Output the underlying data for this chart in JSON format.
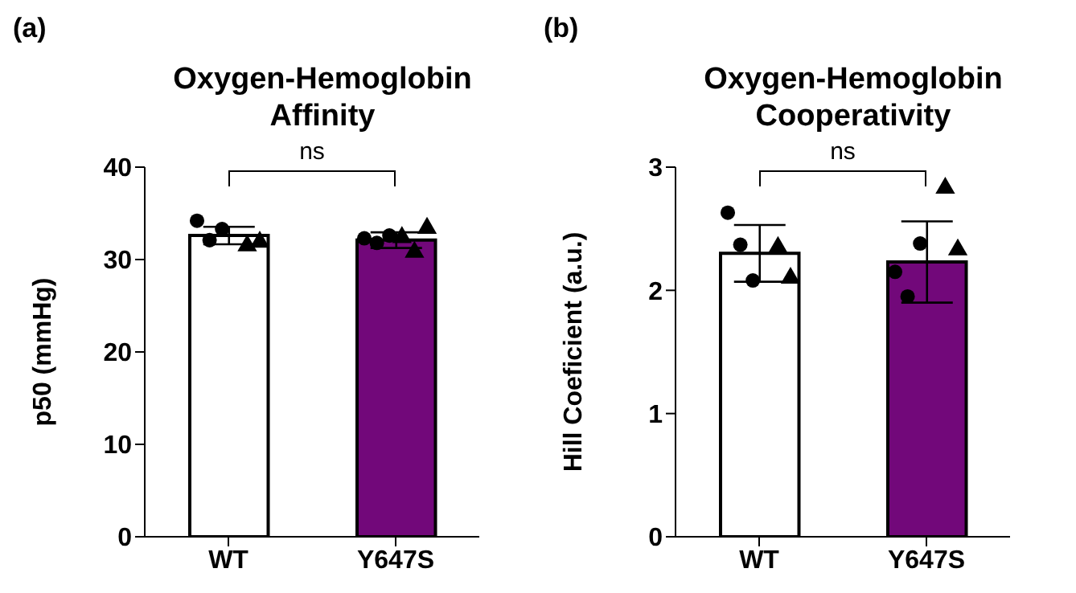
{
  "chart_data": [
    {
      "type": "bar",
      "title": "Oxygen-Hemoglobin Affinity",
      "ylabel": "p50 (mmHg)",
      "annotations": [
        "(a)",
        "ns"
      ],
      "categories": [
        "WT",
        "Y647S"
      ],
      "grid": false,
      "ylim": [
        0,
        40
      ],
      "yticks": [
        0,
        10,
        20,
        30,
        40
      ],
      "series": [
        {
          "values": [
            32.6,
            32.1
          ],
          "colors": [
            "#ffffff",
            "#72087a"
          ],
          "errors": [
            0.95,
            0.85
          ]
        },
        {
          "type": "scatter",
          "marker": "circle",
          "color": "#000000",
          "x": [
            "WT",
            "WT",
            "WT",
            "Y647S",
            "Y647S",
            "Y647S"
          ],
          "values": [
            34.2,
            32.1,
            33.3,
            32.3,
            31.8,
            32.6
          ]
        },
        {
          "type": "scatter",
          "marker": "triangle",
          "color": "#000000",
          "x": [
            "WT",
            "WT",
            "Y647S",
            "Y647S",
            "Y647S"
          ],
          "values": [
            31.5,
            31.9,
            32.4,
            30.8,
            33.4
          ]
        }
      ]
    },
    {
      "type": "bar",
      "title": "Oxygen-Hemoglobin Cooperativity",
      "ylabel": "Hill Coeficient (a.u.)",
      "annotations": [
        "(b)",
        "ns"
      ],
      "categories": [
        "WT",
        "Y647S"
      ],
      "grid": false,
      "ylim": [
        0,
        3
      ],
      "yticks": [
        0,
        1,
        2,
        3
      ],
      "series": [
        {
          "values": [
            2.3,
            2.23
          ],
          "colors": [
            "#ffffff",
            "#72087a"
          ],
          "errors": [
            0.23,
            0.33
          ]
        },
        {
          "type": "scatter",
          "marker": "circle",
          "color": "#000000",
          "x": [
            "WT",
            "WT",
            "WT",
            "Y647S",
            "Y647S",
            "Y647S"
          ],
          "values": [
            2.63,
            2.37,
            2.08,
            2.15,
            1.95,
            2.38
          ]
        },
        {
          "type": "scatter",
          "marker": "triangle",
          "color": "#000000",
          "x": [
            "WT",
            "WT",
            "Y647S",
            "Y647S"
          ],
          "values": [
            2.35,
            2.1,
            2.83,
            2.33
          ]
        }
      ]
    }
  ]
}
